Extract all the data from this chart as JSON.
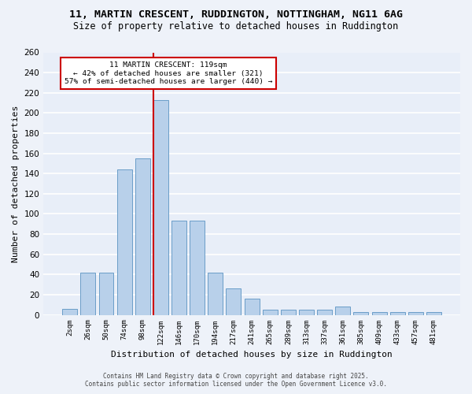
{
  "title_line1": "11, MARTIN CRESCENT, RUDDINGTON, NOTTINGHAM, NG11 6AG",
  "title_line2": "Size of property relative to detached houses in Ruddington",
  "xlabel": "Distribution of detached houses by size in Ruddington",
  "ylabel": "Number of detached properties",
  "bar_color": "#b8d0ea",
  "bar_edge_color": "#6a9dc8",
  "background_color": "#e8eef8",
  "grid_color": "#ffffff",
  "labels": [
    "2sqm",
    "26sqm",
    "50sqm",
    "74sqm",
    "98sqm",
    "122sqm",
    "146sqm",
    "170sqm",
    "194sqm",
    "217sqm",
    "241sqm",
    "265sqm",
    "289sqm",
    "313sqm",
    "337sqm",
    "361sqm",
    "385sqm",
    "409sqm",
    "433sqm",
    "457sqm",
    "481sqm"
  ],
  "bar_heights": [
    6,
    42,
    42,
    144,
    155,
    213,
    93,
    93,
    42,
    26,
    16,
    5,
    5,
    5,
    5,
    8,
    3,
    3,
    3,
    3,
    3
  ],
  "property_name": "11 MARTIN CRESCENT: 119sqm",
  "pct_smaller": 42,
  "count_smaller": 321,
  "pct_larger": 57,
  "count_larger": 440,
  "vline_color": "#cc0000",
  "annotation_box_edge": "#cc0000",
  "footer_line1": "Contains HM Land Registry data © Crown copyright and database right 2025.",
  "footer_line2": "Contains public sector information licensed under the Open Government Licence v3.0.",
  "ylim_max": 260,
  "yticks": [
    0,
    20,
    40,
    60,
    80,
    100,
    120,
    140,
    160,
    180,
    200,
    220,
    240,
    260
  ],
  "vline_bar_index": 5
}
